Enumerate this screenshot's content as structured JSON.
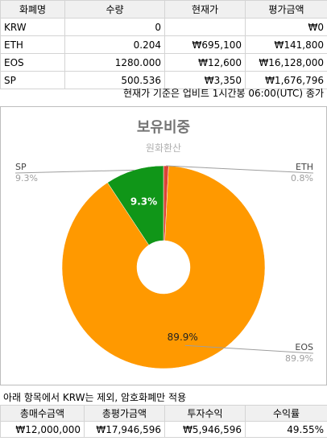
{
  "holdings": {
    "headers": [
      "화폐명",
      "수량",
      "현재가",
      "평가금액"
    ],
    "rows": [
      [
        "KRW",
        "0",
        "",
        "₩0"
      ],
      [
        "ETH",
        "0.204",
        "₩695,100",
        "₩141,800"
      ],
      [
        "EOS",
        "1280.000",
        "₩12,600",
        "₩16,128,000"
      ],
      [
        "SP",
        "500.536",
        "₩3,350",
        "₩1,676,796"
      ]
    ]
  },
  "price_note": "현재가 기준은 업비트 1시간봉 06:00(UTC) 종가",
  "chart_data": {
    "type": "pie",
    "title": "보유비중",
    "subtitle": "원화환산",
    "slices": [
      {
        "name": "ETH",
        "value": 0.8,
        "label": "0.8%",
        "color": "#db4437"
      },
      {
        "name": "EOS",
        "value": 89.9,
        "label": "89.9%",
        "color": "#ff9900"
      },
      {
        "name": "SP",
        "value": 9.3,
        "label": "9.3%",
        "color": "#109618"
      }
    ],
    "donut_hole": true
  },
  "exclusion_note": "아래 항목에서 KRW는 제외, 암호화폐만 적용",
  "summary": {
    "headers": [
      "총매수금액",
      "총평가금액",
      "투자수익",
      "수익률"
    ],
    "values": [
      "₩12,000,000",
      "₩17,946,596",
      "₩5,946,596",
      "49.55%"
    ]
  }
}
